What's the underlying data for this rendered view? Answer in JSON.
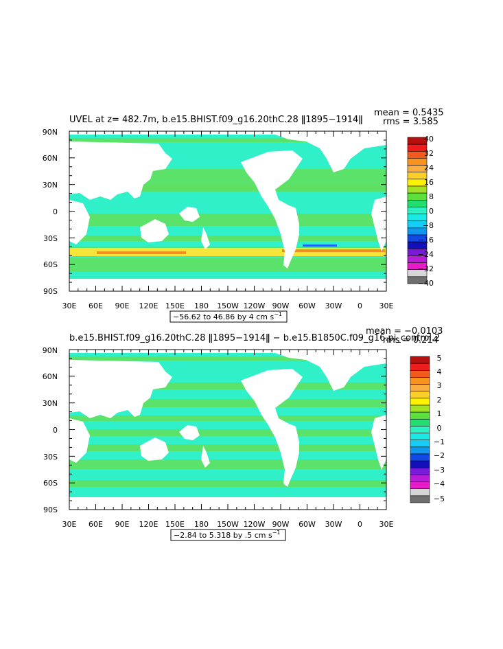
{
  "panels": [
    {
      "title": "UVEL at z= 482.7m, b.e15.BHIST.f09_g16.20thC.28 ǁ1895−1914ǁ",
      "stats": {
        "mean": "mean = 0.5435",
        "rms": "rms = 3.585"
      },
      "lat_ticks": [
        "90N",
        "60N",
        "30N",
        "0",
        "30S",
        "60S",
        "90S"
      ],
      "lon_ticks": [
        "30E",
        "60E",
        "90E",
        "120E",
        "150E",
        "180",
        "150W",
        "120W",
        "90W",
        "60W",
        "30W",
        "0",
        "30E"
      ],
      "range_label": "−56.62 to 46.86 by 4 cm s",
      "range_unit_exp": "−1",
      "colorbar_labels": [
        "40",
        "32",
        "24",
        "16",
        "8",
        "0",
        "−8",
        "−16",
        "−24",
        "−32",
        "−40"
      ]
    },
    {
      "title": "b.e15.BHIST.f09_g16.20thC.28 ǁ1895−1914ǁ − b.e15.B1850C.f09_g16.pi_control.2",
      "stats": {
        "mean": "mean = −0.0103",
        "rms": "rms = 0.214"
      },
      "lat_ticks": [
        "90N",
        "60N",
        "30N",
        "0",
        "30S",
        "60S",
        "90S"
      ],
      "lon_ticks": [
        "30E",
        "60E",
        "90E",
        "120E",
        "150E",
        "180",
        "150W",
        "120W",
        "90W",
        "60W",
        "30W",
        "0",
        "30E"
      ],
      "range_label": "−2.84 to 5.318 by .5 cm s",
      "range_unit_exp": "−1",
      "colorbar_labels": [
        "5",
        "4",
        "3",
        "2",
        "1",
        "0",
        "−1",
        "−2",
        "−3",
        "−4",
        "−5"
      ]
    }
  ],
  "colorbar_colors": [
    "#b50f0f",
    "#ee1c1c",
    "#f25b1e",
    "#f7931e",
    "#f9ae42",
    "#fbcf2a",
    "#fff200",
    "#a3e222",
    "#5ce03c",
    "#22dd6f",
    "#2ef0c2",
    "#1ce9e5",
    "#15cdf6",
    "#1198ee",
    "#1049e6",
    "#1410b9",
    "#7a1ad9",
    "#b81cd6",
    "#e81aca",
    "#d6d6d6",
    "#6f6f6f"
  ],
  "field_colors": {
    "land": "#ffffff",
    "main": "#2ff0c8",
    "band": "#5fe060",
    "jet": "#f5e43a",
    "jet_hot": "#f0901e",
    "neg": "#1568f0"
  }
}
